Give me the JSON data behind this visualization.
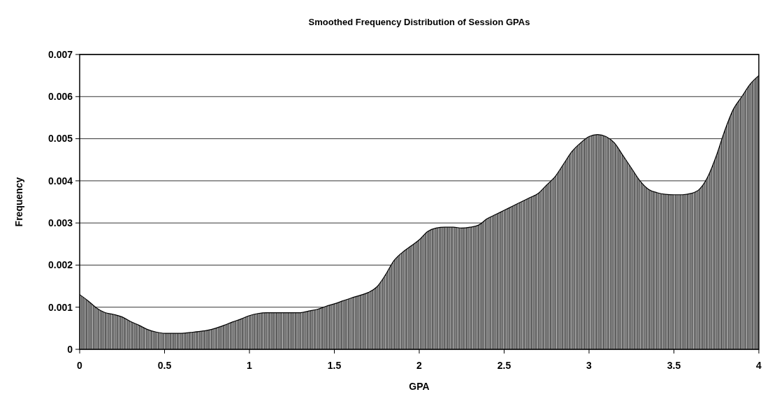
{
  "chart_data": {
    "type": "area",
    "title": "Smoothed Frequency Distribution of Session GPAs",
    "xlabel": "GPA",
    "ylabel": "Frequency",
    "x": [
      0,
      0.05,
      0.1,
      0.15,
      0.2,
      0.25,
      0.3,
      0.35,
      0.4,
      0.45,
      0.5,
      0.55,
      0.6,
      0.65,
      0.7,
      0.75,
      0.8,
      0.85,
      0.9,
      0.95,
      1,
      1.05,
      1.1,
      1.15,
      1.2,
      1.25,
      1.3,
      1.35,
      1.4,
      1.45,
      1.5,
      1.55,
      1.6,
      1.65,
      1.7,
      1.75,
      1.8,
      1.85,
      1.9,
      1.95,
      2,
      2.05,
      2.1,
      2.15,
      2.2,
      2.25,
      2.3,
      2.35,
      2.4,
      2.45,
      2.5,
      2.55,
      2.6,
      2.65,
      2.7,
      2.75,
      2.8,
      2.85,
      2.9,
      2.95,
      3,
      3.05,
      3.1,
      3.15,
      3.2,
      3.25,
      3.3,
      3.35,
      3.4,
      3.45,
      3.5,
      3.55,
      3.6,
      3.65,
      3.7,
      3.75,
      3.8,
      3.85,
      3.9,
      3.95,
      4
    ],
    "values": [
      0.0013,
      0.00115,
      0.00098,
      0.00087,
      0.00083,
      0.00077,
      0.00066,
      0.00057,
      0.00047,
      0.00041,
      0.00038,
      0.00038,
      0.00038,
      0.0004,
      0.00042,
      0.00045,
      0.0005,
      0.00057,
      0.00065,
      0.00072,
      0.0008,
      0.00085,
      0.00087,
      0.00087,
      0.00087,
      0.00087,
      0.00087,
      0.00091,
      0.00095,
      0.00102,
      0.00108,
      0.00115,
      0.00122,
      0.00128,
      0.00135,
      0.00148,
      0.00176,
      0.0021,
      0.0023,
      0.00245,
      0.0026,
      0.0028,
      0.00288,
      0.0029,
      0.0029,
      0.00288,
      0.0029,
      0.00295,
      0.0031,
      0.0032,
      0.0033,
      0.0034,
      0.0035,
      0.0036,
      0.0037,
      0.0039,
      0.0041,
      0.0044,
      0.0047,
      0.0049,
      0.00505,
      0.0051,
      0.00505,
      0.0049,
      0.0046,
      0.0043,
      0.004,
      0.0038,
      0.00372,
      0.00368,
      0.00367,
      0.00367,
      0.0037,
      0.0038,
      0.0041,
      0.0046,
      0.0052,
      0.0057,
      0.006,
      0.0063,
      0.0065
    ],
    "color": "#404040",
    "xlim": [
      0,
      4
    ],
    "xticks": [
      0,
      0.5,
      1,
      1.5,
      2,
      2.5,
      3,
      3.5,
      4
    ],
    "ylim": [
      0,
      0.007
    ],
    "yticks": [
      0,
      0.001,
      0.002,
      0.003,
      0.004,
      0.005,
      0.006,
      0.007
    ],
    "grid": "y"
  }
}
